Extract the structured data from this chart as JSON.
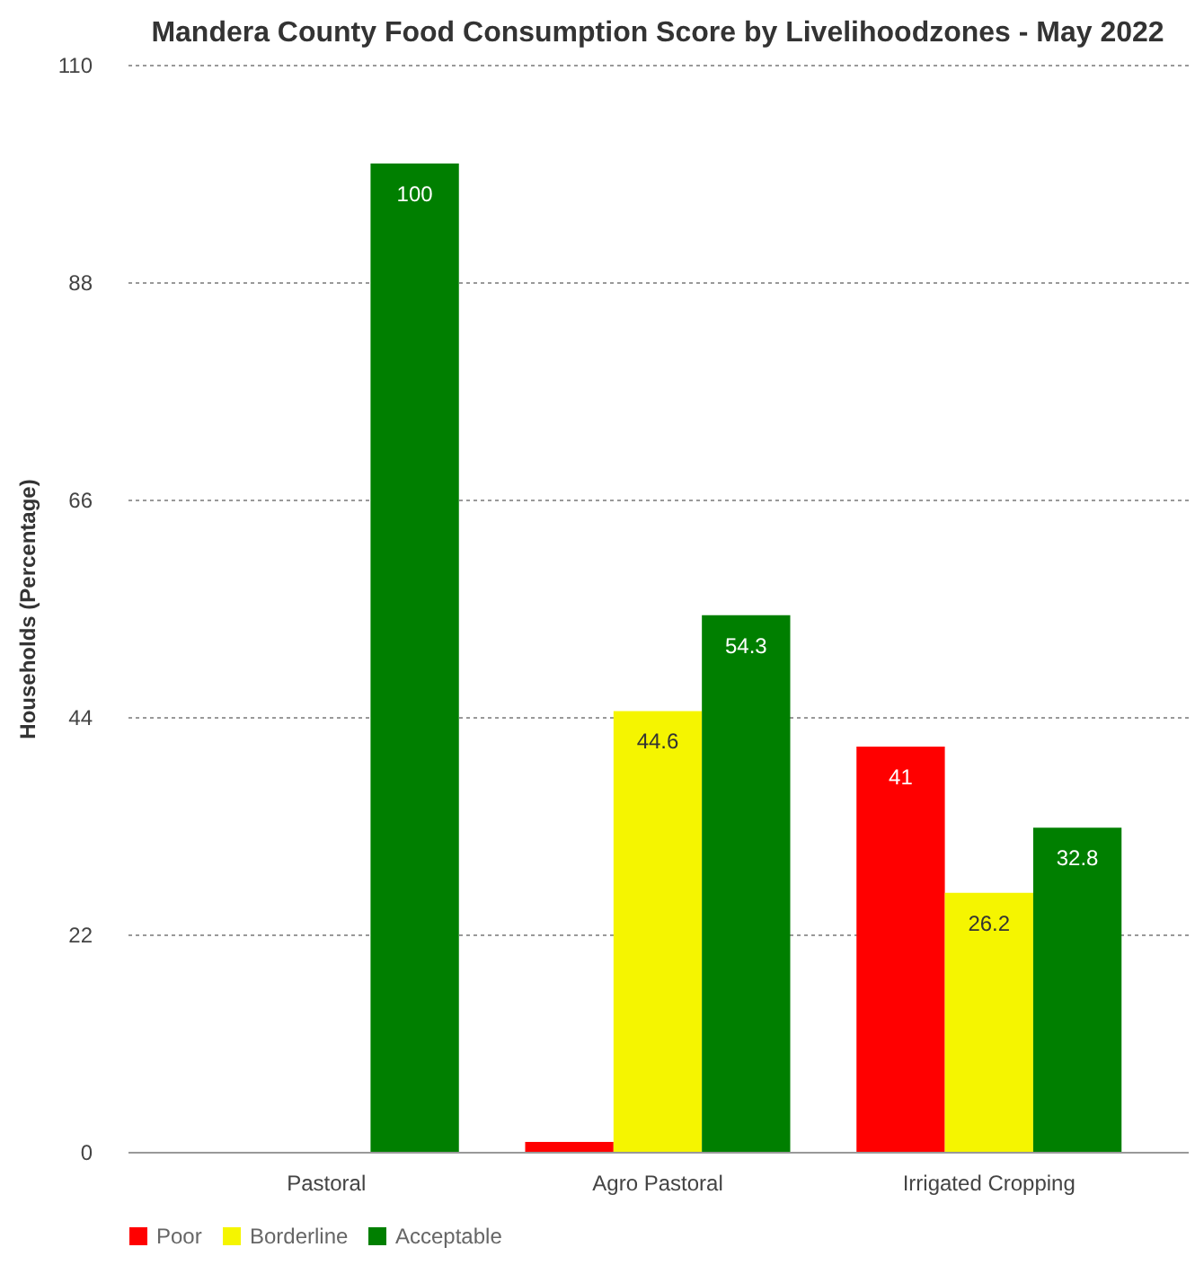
{
  "chart_data": {
    "type": "bar",
    "title": "Mandera County Food Consumption Score by Livelihoodzones - May 2022",
    "ylabel": "Households (Percentage)",
    "categories": [
      "Pastoral",
      "Agro Pastoral",
      "Irrigated Cropping"
    ],
    "series": [
      {
        "name": "Poor",
        "color": "#ff0000",
        "values": [
          0,
          1,
          41
        ],
        "value_labels": [
          null,
          null,
          "41"
        ]
      },
      {
        "name": "Borderline",
        "color": "#f5f500",
        "values": [
          0,
          44.6,
          26.2
        ],
        "value_labels": [
          null,
          "44.6",
          "26.2"
        ]
      },
      {
        "name": "Acceptable",
        "color": "#007f00",
        "values": [
          100,
          54.3,
          32.8
        ],
        "value_labels": [
          "100",
          "54.3",
          "32.8"
        ]
      }
    ],
    "ylim": [
      0,
      110
    ],
    "yticks": [
      0,
      22,
      44,
      66,
      88,
      110
    ],
    "grid": "y",
    "legend": "bottom"
  }
}
